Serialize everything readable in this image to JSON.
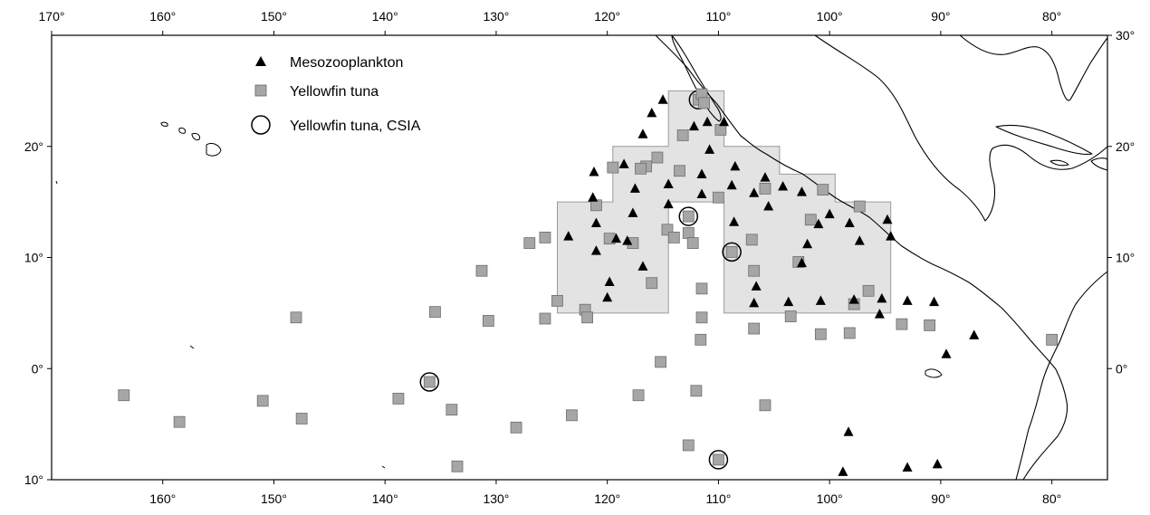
{
  "map": {
    "legend": [
      {
        "key": "mesozooplankton",
        "label": "Mesozooplankton",
        "symbol": "triangle",
        "color": "#000000"
      },
      {
        "key": "yellowfin",
        "label": "Yellowfin tuna",
        "symbol": "square",
        "color": "#a6a6a6"
      },
      {
        "key": "csia",
        "label": "Yellowfin tuna, CSIA",
        "symbol": "circle",
        "color": "#000000"
      }
    ],
    "top_lon_labels": [
      "170°",
      "160°",
      "150°",
      "140°",
      "130°",
      "120°",
      "110°",
      "100°",
      "90°",
      "80°"
    ],
    "bottom_lon_labels": [
      "160°",
      "150°",
      "140°",
      "130°",
      "120°",
      "110°",
      "100°",
      "90°",
      "80°"
    ],
    "left_lat_labels": [
      "20°",
      "10°",
      "0°",
      "10°"
    ],
    "right_lat_labels": [
      "30°",
      "20°",
      "10°",
      "0°"
    ],
    "lon_range": [
      -170,
      -75
    ],
    "lat_range": [
      -10,
      30
    ],
    "study_region_color": "#e3e3e3",
    "study_region": [
      [
        -124.5,
        5
      ],
      [
        -124.5,
        15
      ],
      [
        -119.5,
        15
      ],
      [
        -119.5,
        20
      ],
      [
        -114.5,
        20
      ],
      [
        -114.5,
        25
      ],
      [
        -109.5,
        25
      ],
      [
        -109.5,
        20
      ],
      [
        -104.5,
        20
      ],
      [
        -104.5,
        17.5
      ],
      [
        -99.5,
        17.5
      ],
      [
        -99.5,
        15
      ],
      [
        -94.5,
        15
      ],
      [
        -94.5,
        5
      ],
      [
        -109.5,
        5
      ],
      [
        -109.5,
        15
      ],
      [
        -114.5,
        15
      ],
      [
        -114.5,
        5
      ]
    ],
    "mesozooplankton": [
      [
        -115,
        24.2
      ],
      [
        -116,
        23
      ],
      [
        -111,
        22.2
      ],
      [
        -109.5,
        22.2
      ],
      [
        -112.2,
        21.8
      ],
      [
        -116.8,
        21.1
      ],
      [
        -110.8,
        19.7
      ],
      [
        -118.5,
        18.4
      ],
      [
        -108.5,
        18.2
      ],
      [
        -114.5,
        16.6
      ],
      [
        -111.5,
        17.5
      ],
      [
        -105.8,
        17.2
      ],
      [
        -121.2,
        17.7
      ],
      [
        -117.5,
        16.2
      ],
      [
        -108.8,
        16.5
      ],
      [
        -104.2,
        16.4
      ],
      [
        -102.5,
        15.9
      ],
      [
        -111.5,
        15.7
      ],
      [
        -106.8,
        15.8
      ],
      [
        -121.3,
        15.4
      ],
      [
        -114.5,
        14.8
      ],
      [
        -105.5,
        14.6
      ],
      [
        -117.7,
        14
      ],
      [
        -100,
        13.9
      ],
      [
        -108.6,
        13.2
      ],
      [
        -101,
        13
      ],
      [
        -98.2,
        13.1
      ],
      [
        -94.8,
        13.4
      ],
      [
        -121,
        13.1
      ],
      [
        -123.5,
        11.9
      ],
      [
        -119.2,
        11.7
      ],
      [
        -118.2,
        11.5
      ],
      [
        -102,
        11.2
      ],
      [
        -97.3,
        11.5
      ],
      [
        -94.5,
        11.9
      ],
      [
        -121,
        10.6
      ],
      [
        -102.5,
        9.5
      ],
      [
        -116.8,
        9.2
      ],
      [
        -119.8,
        7.8
      ],
      [
        -106.6,
        7.4
      ],
      [
        -120,
        6.4
      ],
      [
        -106.8,
        5.9
      ],
      [
        -103.7,
        6
      ],
      [
        -100.8,
        6.1
      ],
      [
        -97.8,
        6.2
      ],
      [
        -95.3,
        6.3
      ],
      [
        -93,
        6.1
      ],
      [
        -90.6,
        6
      ],
      [
        -95.5,
        4.9
      ],
      [
        -89.5,
        1.3
      ],
      [
        -87,
        3
      ],
      [
        -98.3,
        -5.7
      ],
      [
        -93,
        -8.9
      ],
      [
        -90.3,
        -8.6
      ],
      [
        -98.8,
        -9.3
      ]
    ],
    "yellowfin": [
      [
        -111.8,
        24.2
      ],
      [
        -111.5,
        24.7
      ],
      [
        -111.3,
        23.9
      ],
      [
        -113.2,
        21
      ],
      [
        -109.8,
        21.5
      ],
      [
        -119.5,
        18.1
      ],
      [
        -116.5,
        18.2
      ],
      [
        -117,
        18
      ],
      [
        -115.5,
        19
      ],
      [
        -113.5,
        17.8
      ],
      [
        -105.8,
        16.2
      ],
      [
        -100.6,
        16.1
      ],
      [
        -110,
        15.4
      ],
      [
        -121,
        14.7
      ],
      [
        -97.3,
        14.6
      ],
      [
        -112.7,
        13.7
      ],
      [
        -114.6,
        12.5
      ],
      [
        -101.7,
        13.4
      ],
      [
        -127,
        11.3
      ],
      [
        -125.6,
        11.8
      ],
      [
        -119.8,
        11.7
      ],
      [
        -117.7,
        11.3
      ],
      [
        -114,
        11.8
      ],
      [
        -112.7,
        12.2
      ],
      [
        -112.3,
        11.3
      ],
      [
        -107,
        11.6
      ],
      [
        -108.8,
        10.5
      ],
      [
        -102.8,
        9.6
      ],
      [
        -106.8,
        8.8
      ],
      [
        -131.3,
        8.8
      ],
      [
        -116,
        7.7
      ],
      [
        -111.5,
        7.2
      ],
      [
        -96.5,
        7
      ],
      [
        -124.5,
        6.1
      ],
      [
        -97.8,
        5.8
      ],
      [
        -122,
        5.3
      ],
      [
        -121.8,
        4.6
      ],
      [
        -111.5,
        4.6
      ],
      [
        -103.5,
        4.7
      ],
      [
        -148,
        4.6
      ],
      [
        -135.5,
        5.1
      ],
      [
        -130.7,
        4.3
      ],
      [
        -125.6,
        4.5
      ],
      [
        -93.5,
        4
      ],
      [
        -91,
        3.9
      ],
      [
        -106.8,
        3.6
      ],
      [
        -100.8,
        3.1
      ],
      [
        -98.2,
        3.2
      ],
      [
        -80,
        2.6
      ],
      [
        -111.6,
        2.6
      ],
      [
        -115.2,
        0.6
      ],
      [
        -136,
        -1.2
      ],
      [
        -163.5,
        -2.4
      ],
      [
        -151,
        -2.9
      ],
      [
        -138.8,
        -2.7
      ],
      [
        -117.2,
        -2.4
      ],
      [
        -112,
        -2
      ],
      [
        -134,
        -3.7
      ],
      [
        -105.8,
        -3.3
      ],
      [
        -147.5,
        -4.5
      ],
      [
        -158.5,
        -4.8
      ],
      [
        -123.2,
        -4.2
      ],
      [
        -128.2,
        -5.3
      ],
      [
        -112.7,
        -6.9
      ],
      [
        -110,
        -8.2
      ],
      [
        -133.5,
        -8.8
      ]
    ],
    "csia": [
      [
        -111.8,
        24.2
      ],
      [
        -112.7,
        13.7
      ],
      [
        -108.8,
        10.5
      ],
      [
        -136,
        -1.2
      ],
      [
        -110,
        -8.2
      ]
    ]
  }
}
